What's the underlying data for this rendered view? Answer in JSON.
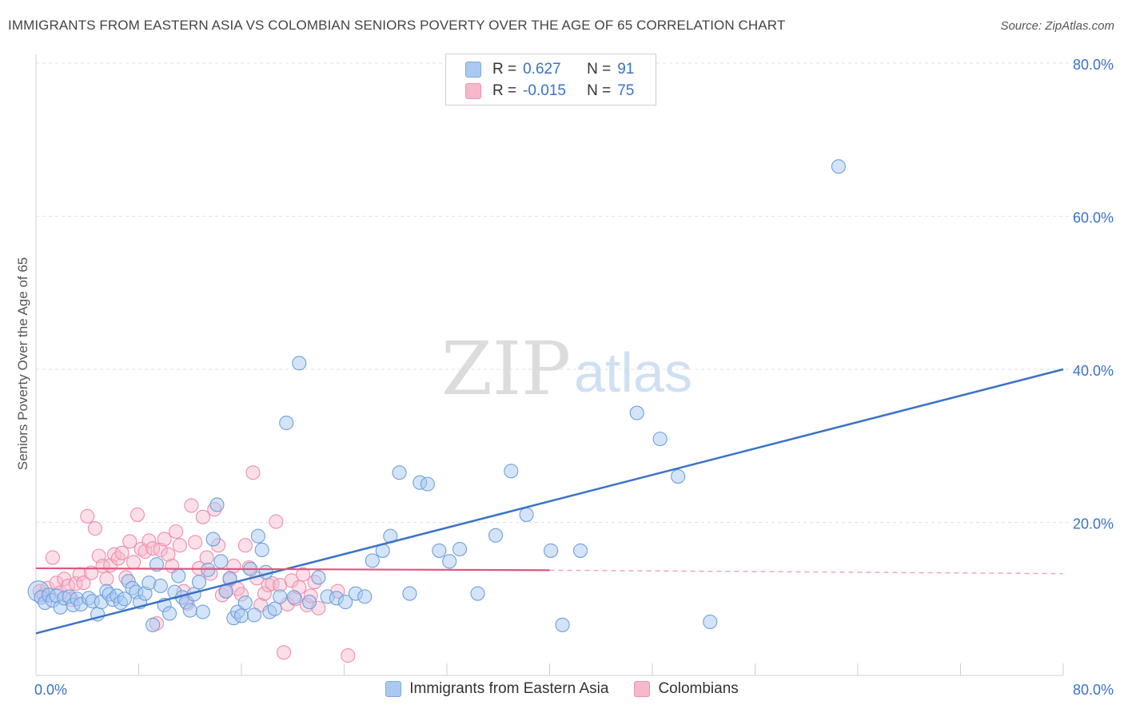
{
  "header": {
    "title": "IMMIGRANTS FROM EASTERN ASIA VS COLOMBIAN SENIORS POVERTY OVER THE AGE OF 65 CORRELATION CHART",
    "source": "Source: ZipAtlas.com"
  },
  "watermark": {
    "zip": "ZIP",
    "atlas": "atlas"
  },
  "legend": {
    "rows": [
      {
        "r_label": "R =",
        "r_value": "0.627",
        "n_label": "N =",
        "n_value": "91",
        "color": "#a9c9f2"
      },
      {
        "r_label": "R =",
        "r_value": "-0.015",
        "n_label": "N =",
        "n_value": "75",
        "color": "#f7b8cb"
      }
    ]
  },
  "bottom_legend": {
    "items": [
      {
        "label": "Immigrants from Eastern Asia",
        "color": "#a9c9f2"
      },
      {
        "label": "Colombians",
        "color": "#f7b8cb"
      }
    ]
  },
  "chart_data": {
    "type": "scatter",
    "title": "IMMIGRANTS FROM EASTERN ASIA VS COLOMBIAN SENIORS POVERTY OVER THE AGE OF 65 CORRELATION CHART",
    "xlabel": "",
    "ylabel": "Seniors Poverty Over the Age of 65",
    "xlim": [
      0,
      80
    ],
    "ylim": [
      0,
      80
    ],
    "x_tick_labels": [
      "0.0%",
      "80.0%"
    ],
    "y_tick_values": [
      20,
      40,
      60,
      80
    ],
    "y_tick_labels": [
      "20.0%",
      "40.0%",
      "60.0%",
      "80.0%"
    ],
    "grid": true,
    "series": [
      {
        "name": "Immigrants from Eastern Asia",
        "color": "#3a72c8",
        "fill": "#a9c9f2",
        "trend": {
          "x": [
            0,
            80
          ],
          "y": [
            5.5,
            40
          ]
        },
        "points": [
          [
            0.2,
            11.0
          ],
          [
            0.4,
            10.2
          ],
          [
            0.7,
            9.5
          ],
          [
            1.0,
            10.5
          ],
          [
            1.3,
            9.8
          ],
          [
            1.6,
            10.4
          ],
          [
            1.9,
            8.9
          ],
          [
            2.2,
            10.1
          ],
          [
            2.6,
            10.3
          ],
          [
            2.9,
            9.2
          ],
          [
            3.2,
            10.0
          ],
          [
            3.5,
            9.3
          ],
          [
            4.1,
            10.1
          ],
          [
            4.4,
            9.7
          ],
          [
            4.8,
            8.0
          ],
          [
            5.1,
            9.6
          ],
          [
            5.5,
            11.0
          ],
          [
            5.7,
            10.6
          ],
          [
            6.0,
            9.9
          ],
          [
            6.3,
            10.4
          ],
          [
            6.6,
            9.5
          ],
          [
            6.9,
            10.0
          ],
          [
            7.2,
            12.3
          ],
          [
            7.5,
            11.4
          ],
          [
            7.8,
            10.9
          ],
          [
            8.1,
            9.6
          ],
          [
            8.5,
            10.7
          ],
          [
            8.8,
            12.1
          ],
          [
            9.1,
            6.6
          ],
          [
            9.4,
            14.5
          ],
          [
            9.7,
            11.7
          ],
          [
            10.0,
            9.2
          ],
          [
            10.4,
            8.1
          ],
          [
            10.8,
            10.9
          ],
          [
            11.1,
            13.0
          ],
          [
            11.4,
            10.2
          ],
          [
            11.7,
            9.6
          ],
          [
            12.0,
            8.5
          ],
          [
            12.3,
            10.6
          ],
          [
            12.7,
            12.2
          ],
          [
            13.0,
            8.3
          ],
          [
            13.4,
            13.8
          ],
          [
            13.8,
            17.8
          ],
          [
            14.1,
            22.3
          ],
          [
            14.4,
            14.9
          ],
          [
            14.8,
            11.0
          ],
          [
            15.1,
            12.7
          ],
          [
            15.4,
            7.5
          ],
          [
            15.7,
            8.3
          ],
          [
            16.0,
            7.8
          ],
          [
            16.3,
            9.5
          ],
          [
            16.7,
            13.9
          ],
          [
            17.0,
            7.9
          ],
          [
            17.3,
            18.2
          ],
          [
            17.6,
            16.4
          ],
          [
            17.9,
            13.5
          ],
          [
            18.2,
            8.3
          ],
          [
            18.6,
            8.7
          ],
          [
            19.0,
            10.3
          ],
          [
            19.5,
            33.0
          ],
          [
            20.1,
            10.2
          ],
          [
            20.5,
            40.8
          ],
          [
            21.3,
            9.6
          ],
          [
            22.0,
            12.8
          ],
          [
            22.7,
            10.3
          ],
          [
            23.4,
            10.1
          ],
          [
            24.1,
            9.6
          ],
          [
            24.9,
            10.7
          ],
          [
            25.6,
            10.3
          ],
          [
            26.2,
            15.0
          ],
          [
            27.0,
            16.3
          ],
          [
            27.6,
            18.2
          ],
          [
            28.3,
            26.5
          ],
          [
            29.1,
            10.7
          ],
          [
            29.9,
            25.2
          ],
          [
            30.5,
            25.0
          ],
          [
            31.4,
            16.3
          ],
          [
            32.2,
            14.9
          ],
          [
            33.0,
            16.5
          ],
          [
            34.4,
            10.7
          ],
          [
            35.8,
            18.3
          ],
          [
            37.0,
            26.7
          ],
          [
            38.2,
            21.0
          ],
          [
            40.1,
            16.3
          ],
          [
            41.0,
            6.6
          ],
          [
            42.4,
            16.3
          ],
          [
            46.8,
            34.3
          ],
          [
            48.6,
            30.9
          ],
          [
            50.0,
            26.0
          ],
          [
            52.5,
            7.0
          ],
          [
            62.5,
            66.5
          ]
        ]
      },
      {
        "name": "Colombians",
        "color": "#e0557f",
        "fill": "#f7b8cb",
        "trend": {
          "x": [
            0,
            40,
            80
          ],
          "y": [
            14.0,
            13.75,
            13.3
          ],
          "solid_until_x": 40
        },
        "points": [
          [
            0.3,
            11.0
          ],
          [
            0.6,
            10.5
          ],
          [
            0.9,
            11.4
          ],
          [
            1.3,
            15.4
          ],
          [
            1.6,
            12.1
          ],
          [
            1.9,
            10.8
          ],
          [
            2.2,
            12.6
          ],
          [
            2.5,
            11.7
          ],
          [
            2.8,
            9.9
          ],
          [
            3.1,
            12.0
          ],
          [
            3.4,
            13.2
          ],
          [
            3.7,
            12.1
          ],
          [
            4.0,
            20.8
          ],
          [
            4.3,
            13.4
          ],
          [
            4.6,
            19.2
          ],
          [
            4.9,
            15.6
          ],
          [
            5.2,
            14.3
          ],
          [
            5.5,
            12.6
          ],
          [
            5.8,
            14.4
          ],
          [
            6.1,
            15.8
          ],
          [
            6.4,
            15.3
          ],
          [
            6.7,
            16.0
          ],
          [
            7.0,
            12.8
          ],
          [
            7.3,
            17.5
          ],
          [
            7.6,
            14.8
          ],
          [
            7.9,
            21.0
          ],
          [
            8.2,
            16.5
          ],
          [
            8.5,
            16.2
          ],
          [
            8.8,
            17.6
          ],
          [
            9.1,
            16.6
          ],
          [
            9.4,
            6.8
          ],
          [
            9.7,
            16.4
          ],
          [
            10.0,
            17.8
          ],
          [
            10.3,
            15.8
          ],
          [
            10.6,
            14.3
          ],
          [
            10.9,
            18.8
          ],
          [
            11.2,
            17.0
          ],
          [
            11.5,
            11.0
          ],
          [
            11.8,
            9.4
          ],
          [
            12.1,
            22.2
          ],
          [
            12.4,
            17.4
          ],
          [
            12.7,
            14.0
          ],
          [
            13.0,
            20.7
          ],
          [
            13.3,
            15.4
          ],
          [
            13.6,
            13.3
          ],
          [
            13.9,
            21.7
          ],
          [
            14.2,
            17.0
          ],
          [
            14.5,
            10.5
          ],
          [
            14.8,
            11.0
          ],
          [
            15.1,
            12.5
          ],
          [
            15.4,
            14.3
          ],
          [
            15.7,
            11.3
          ],
          [
            16.0,
            10.6
          ],
          [
            16.3,
            17.0
          ],
          [
            16.6,
            14.1
          ],
          [
            16.9,
            26.5
          ],
          [
            17.2,
            12.7
          ],
          [
            17.5,
            9.2
          ],
          [
            17.8,
            10.7
          ],
          [
            18.1,
            11.8
          ],
          [
            18.4,
            12.0
          ],
          [
            18.7,
            20.1
          ],
          [
            19.0,
            11.8
          ],
          [
            19.3,
            3.0
          ],
          [
            19.6,
            9.3
          ],
          [
            19.9,
            12.4
          ],
          [
            20.2,
            10.0
          ],
          [
            20.5,
            11.5
          ],
          [
            20.8,
            13.2
          ],
          [
            21.1,
            9.2
          ],
          [
            21.4,
            10.4
          ],
          [
            21.7,
            12.2
          ],
          [
            22.0,
            8.8
          ],
          [
            23.5,
            11.0
          ],
          [
            24.3,
            2.6
          ]
        ]
      }
    ]
  }
}
